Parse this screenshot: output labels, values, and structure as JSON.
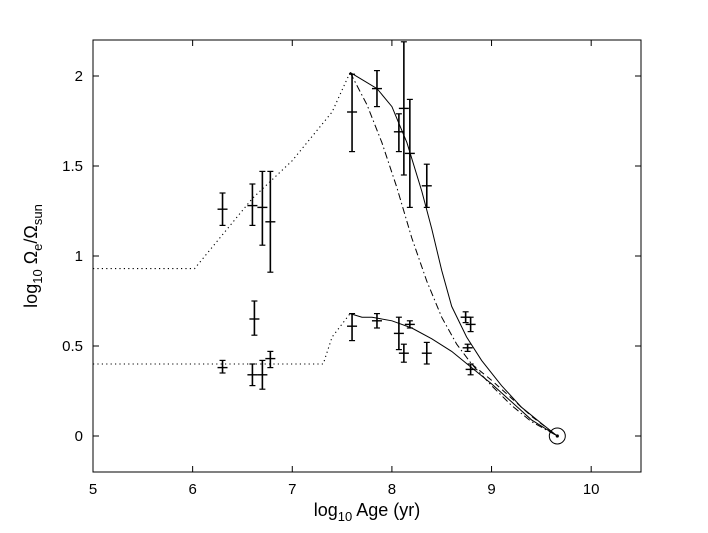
{
  "chart_data": {
    "type": "scatter",
    "title": "",
    "xlabel": {
      "prefix": "log",
      "sub": "10",
      "suffix": " Age (yr)"
    },
    "ylabel": {
      "prefix": "log",
      "sub1": "10",
      "mid1": " Ω",
      "sub2": "e",
      "mid2": "/Ω",
      "sub3": "sun"
    },
    "xlim": [
      5,
      10.5
    ],
    "ylim": [
      -0.2,
      2.2
    ],
    "xticks": [
      5,
      6,
      7,
      8,
      9,
      10
    ],
    "yticks": [
      0,
      0.5,
      1,
      1.5,
      2
    ],
    "xtick_labels": [
      "5",
      "6",
      "7",
      "8",
      "9",
      "10"
    ],
    "ytick_labels": [
      "0",
      "0.5",
      "1",
      "1.5",
      "2"
    ],
    "grid": false,
    "sun_point": {
      "x": 9.66,
      "y": 0
    },
    "series": [
      {
        "style": "errorbar",
        "points": [
          {
            "x": 6.3,
            "y": 1.26,
            "ylo": 1.17,
            "yhi": 1.35
          },
          {
            "x": 6.6,
            "y": 1.28,
            "ylo": 1.17,
            "yhi": 1.4
          },
          {
            "x": 6.7,
            "y": 1.27,
            "ylo": 1.06,
            "yhi": 1.47
          },
          {
            "x": 6.78,
            "y": 1.19,
            "ylo": 0.91,
            "yhi": 1.47
          },
          {
            "x": 7.6,
            "y": 1.8,
            "ylo": 1.58,
            "yhi": 2.01
          },
          {
            "x": 7.85,
            "y": 1.93,
            "ylo": 1.83,
            "yhi": 2.03
          },
          {
            "x": 8.07,
            "y": 1.69,
            "ylo": 1.58,
            "yhi": 1.79
          },
          {
            "x": 8.12,
            "y": 1.82,
            "ylo": 1.45,
            "yhi": 2.19
          },
          {
            "x": 8.18,
            "y": 1.57,
            "ylo": 1.27,
            "yhi": 1.87
          },
          {
            "x": 8.35,
            "y": 1.39,
            "ylo": 1.27,
            "yhi": 1.51
          },
          {
            "x": 6.3,
            "y": 0.38,
            "ylo": 0.35,
            "yhi": 0.42
          },
          {
            "x": 6.6,
            "y": 0.34,
            "ylo": 0.28,
            "yhi": 0.4
          },
          {
            "x": 6.62,
            "y": 0.65,
            "ylo": 0.56,
            "yhi": 0.75
          },
          {
            "x": 6.7,
            "y": 0.34,
            "ylo": 0.26,
            "yhi": 0.42
          },
          {
            "x": 6.78,
            "y": 0.43,
            "ylo": 0.38,
            "yhi": 0.47
          },
          {
            "x": 7.6,
            "y": 0.61,
            "ylo": 0.53,
            "yhi": 0.68
          },
          {
            "x": 7.85,
            "y": 0.64,
            "ylo": 0.6,
            "yhi": 0.68
          },
          {
            "x": 8.07,
            "y": 0.57,
            "ylo": 0.48,
            "yhi": 0.66
          },
          {
            "x": 8.12,
            "y": 0.46,
            "ylo": 0.41,
            "yhi": 0.51
          },
          {
            "x": 8.18,
            "y": 0.62,
            "ylo": 0.6,
            "yhi": 0.64
          },
          {
            "x": 8.35,
            "y": 0.46,
            "ylo": 0.4,
            "yhi": 0.52
          },
          {
            "x": 8.74,
            "y": 0.66,
            "ylo": 0.63,
            "yhi": 0.69
          },
          {
            "x": 8.76,
            "y": 0.49,
            "ylo": 0.47,
            "yhi": 0.51
          },
          {
            "x": 8.79,
            "y": 0.62,
            "ylo": 0.58,
            "yhi": 0.66
          },
          {
            "x": 8.79,
            "y": 0.37,
            "ylo": 0.34,
            "yhi": 0.4
          }
        ]
      },
      {
        "style": "dotted",
        "x": [
          5.0,
          6.02,
          6.6,
          7.0,
          7.4,
          7.58
        ],
        "y": [
          0.93,
          0.93,
          1.32,
          1.53,
          1.8,
          2.02
        ]
      },
      {
        "style": "dotted",
        "x": [
          5.0,
          7.31,
          7.4,
          7.58
        ],
        "y": [
          0.4,
          0.4,
          0.55,
          0.68
        ]
      },
      {
        "style": "solid",
        "x": [
          7.58,
          7.7,
          7.85,
          8.0,
          8.15,
          8.3,
          8.4,
          8.5,
          8.6,
          8.75,
          8.9,
          9.1,
          9.3,
          9.5,
          9.66
        ],
        "y": [
          2.02,
          1.98,
          1.93,
          1.83,
          1.63,
          1.36,
          1.15,
          0.92,
          0.72,
          0.55,
          0.42,
          0.28,
          0.16,
          0.07,
          0.0
        ]
      },
      {
        "style": "dashdot",
        "x": [
          7.58,
          7.75,
          7.9,
          8.05,
          8.2,
          8.35,
          8.5,
          8.65,
          8.8,
          9.0,
          9.2,
          9.4,
          9.66
        ],
        "y": [
          2.02,
          1.84,
          1.63,
          1.38,
          1.1,
          0.86,
          0.66,
          0.51,
          0.4,
          0.28,
          0.17,
          0.08,
          0.0
        ]
      },
      {
        "style": "solid",
        "x": [
          7.58,
          7.7,
          7.8,
          8.0,
          8.2,
          8.4,
          8.6,
          8.8,
          9.0,
          9.2,
          9.4,
          9.66
        ],
        "y": [
          0.68,
          0.66,
          0.66,
          0.64,
          0.6,
          0.54,
          0.47,
          0.38,
          0.29,
          0.19,
          0.09,
          0.0
        ]
      },
      {
        "style": "dashed",
        "x": [
          8.8,
          9.0,
          9.2,
          9.4,
          9.66
        ],
        "y": [
          0.4,
          0.31,
          0.21,
          0.11,
          0.0
        ]
      }
    ]
  }
}
